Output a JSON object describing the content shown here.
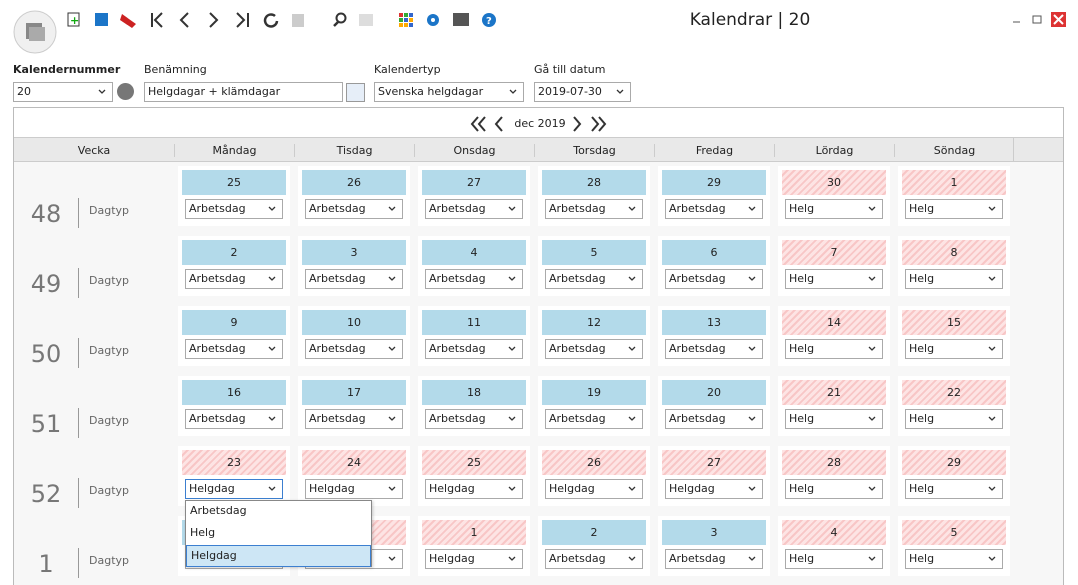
{
  "window": {
    "title": "Kalendrar | 20"
  },
  "fields": [
    {
      "label": "Kalendernummer",
      "value": "20"
    },
    {
      "label": "Benämning",
      "value": "Helgdagar + klämdagar"
    },
    {
      "label": "Kalendertyp",
      "value": "Svenska helgdagar"
    },
    {
      "label": "Gå till datum",
      "value": "2019-07-30"
    }
  ],
  "calendar": {
    "month": "dec 2019",
    "headers": [
      "Vecka",
      "Måndag",
      "Tisdag",
      "Onsdag",
      "Torsdag",
      "Fredag",
      "Lördag",
      "Söndag"
    ],
    "row_label": "Dagtyp",
    "weeks": [
      {
        "week": "48",
        "days": [
          {
            "day": "25",
            "type": "Arbetsdag",
            "striped": false
          },
          {
            "day": "26",
            "type": "Arbetsdag",
            "striped": false
          },
          {
            "day": "27",
            "type": "Arbetsdag",
            "striped": false
          },
          {
            "day": "28",
            "type": "Arbetsdag",
            "striped": false
          },
          {
            "day": "29",
            "type": "Arbetsdag",
            "striped": false
          },
          {
            "day": "30",
            "type": "Helg",
            "striped": true
          },
          {
            "day": "1",
            "type": "Helg",
            "striped": true
          }
        ]
      },
      {
        "week": "49",
        "days": [
          {
            "day": "2",
            "type": "Arbetsdag",
            "striped": false
          },
          {
            "day": "3",
            "type": "Arbetsdag",
            "striped": false
          },
          {
            "day": "4",
            "type": "Arbetsdag",
            "striped": false
          },
          {
            "day": "5",
            "type": "Arbetsdag",
            "striped": false
          },
          {
            "day": "6",
            "type": "Arbetsdag",
            "striped": false
          },
          {
            "day": "7",
            "type": "Helg",
            "striped": true
          },
          {
            "day": "8",
            "type": "Helg",
            "striped": true
          }
        ]
      },
      {
        "week": "50",
        "days": [
          {
            "day": "9",
            "type": "Arbetsdag",
            "striped": false
          },
          {
            "day": "10",
            "type": "Arbetsdag",
            "striped": false
          },
          {
            "day": "11",
            "type": "Arbetsdag",
            "striped": false
          },
          {
            "day": "12",
            "type": "Arbetsdag",
            "striped": false
          },
          {
            "day": "13",
            "type": "Arbetsdag",
            "striped": false
          },
          {
            "day": "14",
            "type": "Helg",
            "striped": true
          },
          {
            "day": "15",
            "type": "Helg",
            "striped": true
          }
        ]
      },
      {
        "week": "51",
        "days": [
          {
            "day": "16",
            "type": "Arbetsdag",
            "striped": false
          },
          {
            "day": "17",
            "type": "Arbetsdag",
            "striped": false
          },
          {
            "day": "18",
            "type": "Arbetsdag",
            "striped": false
          },
          {
            "day": "19",
            "type": "Arbetsdag",
            "striped": false
          },
          {
            "day": "20",
            "type": "Arbetsdag",
            "striped": false
          },
          {
            "day": "21",
            "type": "Helg",
            "striped": true
          },
          {
            "day": "22",
            "type": "Helg",
            "striped": true
          }
        ]
      },
      {
        "week": "52",
        "days": [
          {
            "day": "23",
            "type": "Helgdag",
            "striped": true
          },
          {
            "day": "24",
            "type": "Helgdag",
            "striped": true
          },
          {
            "day": "25",
            "type": "Helgdag",
            "striped": true
          },
          {
            "day": "26",
            "type": "Helgdag",
            "striped": true
          },
          {
            "day": "27",
            "type": "Helgdag",
            "striped": true
          },
          {
            "day": "28",
            "type": "Helg",
            "striped": true
          },
          {
            "day": "29",
            "type": "Helg",
            "striped": true
          }
        ]
      },
      {
        "week": "1",
        "days": [
          {
            "day": null,
            "type": null,
            "striped": false
          },
          {
            "day": null,
            "type": null,
            "striped": true
          },
          {
            "day": "1",
            "type": "Helgdag",
            "striped": true
          },
          {
            "day": "2",
            "type": "Arbetsdag",
            "striped": false
          },
          {
            "day": "3",
            "type": "Arbetsdag",
            "striped": false
          },
          {
            "day": "4",
            "type": "Helg",
            "striped": true
          },
          {
            "day": "5",
            "type": "Helg",
            "striped": true
          }
        ]
      }
    ]
  },
  "dropdown": {
    "options": [
      "Arbetsdag",
      "Helg",
      "Helgdag"
    ],
    "selected": 2
  }
}
